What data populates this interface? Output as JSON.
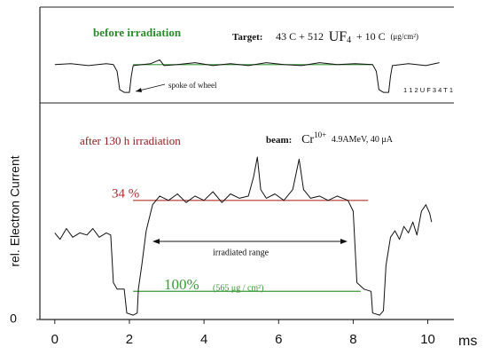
{
  "chart_data": [
    {
      "type": "line",
      "xlim": [
        -0.4,
        10.7
      ],
      "ylim": [
        0,
        100
      ],
      "x": [
        0,
        0.43,
        0.9,
        1.38,
        1.57,
        1.67,
        1.74,
        1.86,
        2.0,
        2.05,
        2.1,
        2.57,
        2.81,
        2.93,
        3.29,
        3.76,
        4.24,
        4.71,
        5.19,
        5.67,
        6.14,
        6.62,
        7.1,
        7.57,
        8.05,
        8.52,
        8.62,
        8.69,
        8.81,
        8.95,
        9.0,
        9.05,
        9.48,
        9.95,
        10.31
      ],
      "series": [
        {
          "color": "#111111",
          "values": [
            40,
            41,
            39,
            41,
            40,
            33,
            14,
            11,
            11,
            28,
            39,
            41,
            45,
            39,
            40,
            42,
            39,
            41,
            39,
            42,
            40,
            39,
            42,
            40,
            41,
            40,
            33,
            14,
            11,
            11,
            28,
            39,
            41,
            39,
            42
          ]
        }
      ],
      "reference_lines": [
        {
          "value": 40,
          "x": [
            2.1,
            8.52
          ],
          "color": "#3a9a3a"
        }
      ],
      "annotations": {
        "state": "before irradiation",
        "target_label": "Target:",
        "target_text": "43 C + 512",
        "target_formula": "UF",
        "target_subscript": "4",
        "target_rest": "+ 10 C",
        "target_unit": "(μg/cm²)",
        "spoke": "spoke of wheel",
        "code": "1 1 2 U F 3 4 T 1"
      }
    },
    {
      "type": "line",
      "xlim": [
        -0.4,
        10.7
      ],
      "ylim": [
        0,
        100
      ],
      "xticks": [
        0,
        2,
        4,
        6,
        8,
        10
      ],
      "yticks": [
        0
      ],
      "x_label": "ms",
      "y_label": "rel. Electron Current",
      "x": [
        0,
        0.14,
        0.31,
        0.48,
        0.67,
        0.86,
        1.02,
        1.19,
        1.38,
        1.5,
        1.57,
        1.67,
        1.86,
        1.93,
        2.1,
        2.21,
        2.24,
        2.33,
        2.45,
        2.62,
        2.81,
        3.05,
        3.29,
        3.52,
        3.76,
        4.0,
        4.24,
        4.48,
        4.71,
        4.95,
        5.19,
        5.33,
        5.43,
        5.52,
        5.67,
        5.9,
        6.14,
        6.38,
        6.55,
        6.67,
        6.86,
        7.1,
        7.33,
        7.57,
        7.86,
        8.0,
        8.1,
        8.29,
        8.48,
        8.52,
        8.71,
        8.81,
        8.88,
        9.0,
        9.12,
        9.24,
        9.36,
        9.48,
        9.6,
        9.71,
        9.83,
        9.95,
        10.05,
        10.1
      ],
      "series": [
        {
          "color": "#111111",
          "values": [
            40,
            37,
            42,
            38,
            40,
            39,
            42,
            38,
            40,
            39,
            17,
            14,
            14,
            3,
            2,
            3,
            14,
            25,
            41,
            53,
            57,
            55,
            58,
            54,
            57,
            55,
            59,
            54,
            58,
            56,
            57,
            66,
            75,
            60,
            56,
            58,
            55,
            60,
            74,
            60,
            56,
            57,
            55,
            57,
            55,
            50,
            17,
            14,
            13,
            3,
            2,
            4,
            25,
            38,
            41,
            37,
            43,
            40,
            45,
            39,
            50,
            53,
            49,
            45
          ]
        }
      ],
      "reference_lines": [
        {
          "label": "34 %",
          "value": 55,
          "x": [
            2.1,
            8.4
          ],
          "color": "#b03030"
        },
        {
          "label": "100%",
          "value": 13,
          "x": [
            2.1,
            8.2
          ],
          "color": "#3a9a3a"
        }
      ],
      "annotations": {
        "state": "after 130 h irradiation",
        "beam_label": "beam:",
        "beam_ion": "Cr",
        "beam_charge": "10+",
        "beam_rest": "4.9AMeV, 40 μA",
        "range": "irradiated range",
        "areal_density": "(565 μg / cm²)"
      }
    }
  ]
}
